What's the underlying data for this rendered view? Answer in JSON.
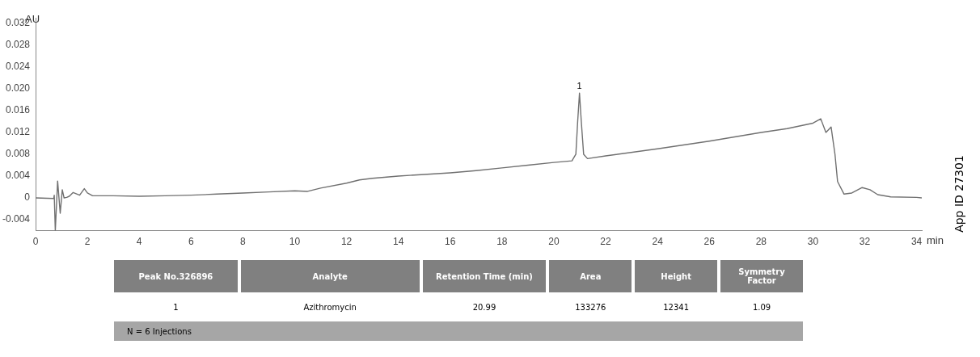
{
  "chart_data": {
    "type": "line",
    "xlabel": "min",
    "ylabel": "AU",
    "xlim": [
      0,
      34.2
    ],
    "ylim": [
      -0.006,
      0.033
    ],
    "xticks": [
      0,
      2,
      4,
      6,
      8,
      10,
      12,
      14,
      16,
      18,
      20,
      22,
      24,
      26,
      28,
      30,
      32,
      34
    ],
    "yticks": [
      {
        "value": -0.004,
        "label": "-0.004"
      },
      0,
      0.004,
      0.008,
      0.012,
      0.016,
      {
        "value": 0.02,
        "label": "0.020"
      },
      0.024,
      0.028,
      0.032
    ],
    "grid": false,
    "legend": false,
    "marker": "none",
    "line_style": "solid",
    "series": [
      {
        "color": "#707070",
        "x": [
          0,
          0.7,
          0.72,
          0.76,
          0.85,
          0.95,
          1.03,
          1.1,
          1.2,
          1.3,
          1.45,
          1.7,
          1.88,
          2.0,
          2.2,
          3,
          4,
          5,
          6,
          7,
          8,
          9,
          10,
          10.5,
          11,
          12,
          12.5,
          13,
          14,
          15,
          16,
          17,
          18,
          19,
          20,
          20.7,
          20.85,
          20.92,
          20.99,
          21.06,
          21.15,
          21.3,
          22,
          24,
          26,
          28,
          29,
          30,
          30.3,
          30.5,
          30.7,
          30.85,
          30.95,
          31.2,
          31.5,
          31.9,
          32.2,
          32.5,
          33,
          34,
          34.2
        ],
        "values": [
          0,
          -0.0001,
          0.0005,
          -0.006,
          0.0031,
          -0.0028,
          0.0015,
          0,
          0.0001,
          0.0003,
          0.001,
          0.0005,
          0.0017,
          0.0009,
          0.0004,
          0.0004,
          0.0003,
          0.0004,
          0.0005,
          0.0007,
          0.0009,
          0.0011,
          0.0013,
          0.0012,
          0.0018,
          0.0027,
          0.0033,
          0.0036,
          0.004,
          0.0043,
          0.0046,
          0.005,
          0.0055,
          0.006,
          0.0065,
          0.0068,
          0.008,
          0.014,
          0.0192,
          0.014,
          0.008,
          0.0072,
          0.0077,
          0.009,
          0.0104,
          0.012,
          0.0127,
          0.0137,
          0.0145,
          0.012,
          0.013,
          0.008,
          0.003,
          0.0007,
          0.0009,
          0.0019,
          0.0015,
          0.0006,
          0.0002,
          0.0001,
          0
        ]
      }
    ],
    "annotations": [
      "App ID 27301",
      "Peak No.326896",
      "Analyte",
      "Retention Time (min)",
      "Area",
      "Height",
      "Symmetry Factor",
      "1",
      "Azithromycin",
      "20.99",
      "133276",
      "12341",
      "1.09",
      "N = 6 Injections",
      {
        "text": "1",
        "x": 20.99,
        "y": 0.0192
      }
    ]
  }
}
